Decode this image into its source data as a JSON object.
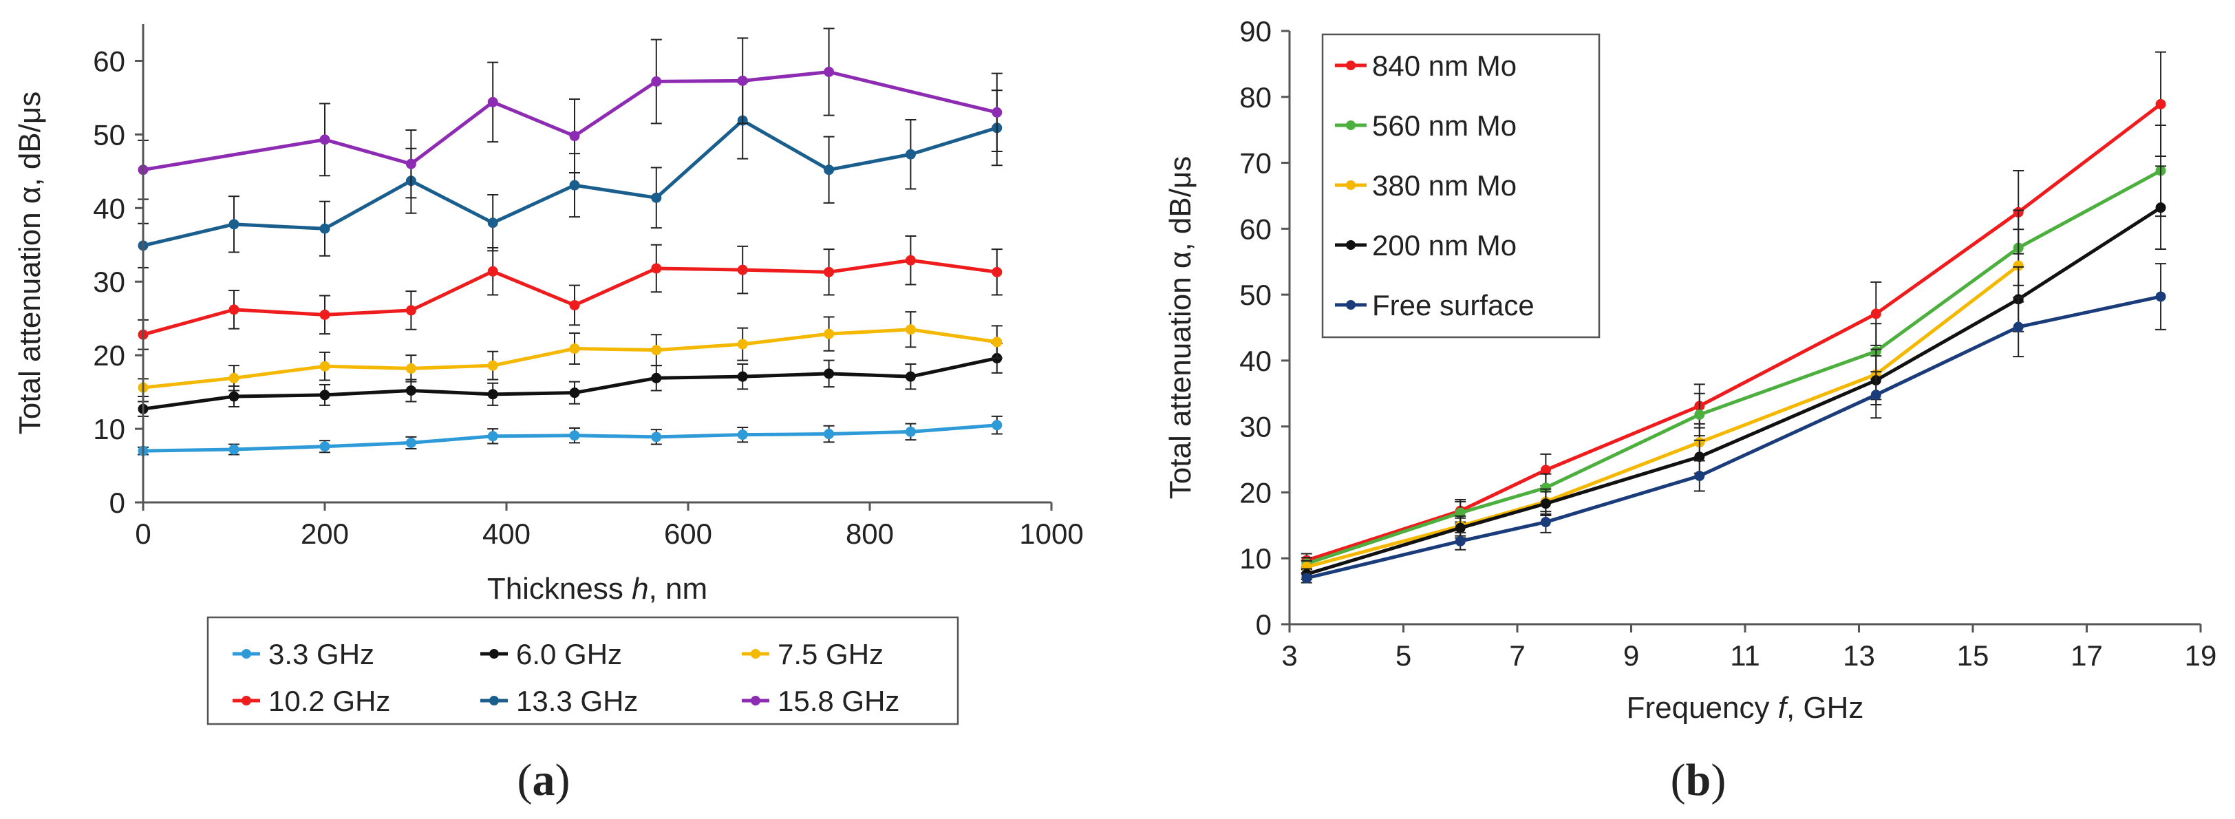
{
  "colors": {
    "axis": "#555555",
    "text": "#222222",
    "sky": "#2E9BD8",
    "black": "#111111",
    "yellow": "#F5B800",
    "red": "#EE1C1C",
    "teal": "#1A5E8E",
    "purple": "#8E2BB3",
    "green": "#4CAF3E",
    "navy": "#1A3C7A"
  },
  "chart_data": [
    {
      "type": "line",
      "panel_label": "a",
      "title": "",
      "xlabel_prefix": "Thickness ",
      "xlabel_italic": "h",
      "xlabel_suffix": ", nm",
      "ylabel": "Total attenuation α, dB/μs",
      "xlim": [
        0,
        1000
      ],
      "ylim": [
        0,
        65
      ],
      "xticks": [
        "0",
        "200",
        "400",
        "600",
        "800",
        "1000"
      ],
      "yticks": [
        "0",
        "10",
        "20",
        "30",
        "40",
        "50",
        "60"
      ],
      "grid": false,
      "legend_position": "below",
      "x": [
        0,
        100,
        200,
        295,
        385,
        475,
        565,
        660,
        755,
        845,
        940
      ],
      "series": [
        {
          "name": "3.3 GHz",
          "color": "sky",
          "values": [
            7.0,
            7.2,
            7.6,
            8.1,
            9.0,
            9.1,
            8.9,
            9.2,
            9.3,
            9.6,
            10.5
          ],
          "errors": [
            0.5,
            0.7,
            0.8,
            0.8,
            1.0,
            1.0,
            1.0,
            1.0,
            1.1,
            1.1,
            1.2
          ]
        },
        {
          "name": "6.0 GHz",
          "color": "black",
          "values": [
            12.7,
            14.4,
            14.6,
            15.2,
            14.7,
            14.9,
            16.9,
            17.1,
            17.5,
            17.1,
            19.6
          ],
          "errors": [
            1.0,
            1.4,
            1.4,
            1.5,
            1.5,
            1.5,
            1.7,
            1.7,
            1.8,
            1.7,
            2.0
          ]
        },
        {
          "name": "7.5 GHz",
          "color": "yellow",
          "values": [
            15.6,
            16.9,
            18.5,
            18.2,
            18.6,
            20.9,
            20.7,
            21.5,
            22.9,
            23.5,
            21.8
          ],
          "errors": [
            1.2,
            1.7,
            1.9,
            1.8,
            1.9,
            2.1,
            2.1,
            2.2,
            2.3,
            2.4,
            2.2
          ]
        },
        {
          "name": "10.2 GHz",
          "color": "red",
          "values": [
            22.8,
            26.2,
            25.5,
            26.1,
            31.4,
            26.8,
            31.8,
            31.6,
            31.3,
            32.9,
            31.3
          ],
          "errors": [
            2.0,
            2.6,
            2.6,
            2.6,
            3.2,
            2.7,
            3.2,
            3.2,
            3.1,
            3.3,
            3.1
          ]
        },
        {
          "name": "13.3 GHz",
          "color": "teal",
          "values": [
            34.9,
            37.8,
            37.2,
            43.7,
            38.0,
            43.1,
            41.4,
            51.9,
            45.2,
            47.3,
            50.9
          ],
          "errors": [
            3.0,
            3.8,
            3.7,
            4.4,
            3.8,
            4.3,
            4.1,
            5.2,
            4.5,
            4.7,
            5.1
          ]
        },
        {
          "name": "15.8 GHz",
          "color": "purple",
          "values": [
            45.2,
            null,
            49.3,
            46.0,
            54.4,
            49.8,
            57.2,
            57.3,
            58.5,
            null,
            53.0
          ],
          "errors": [
            4.0,
            null,
            4.9,
            4.6,
            5.4,
            5.0,
            5.7,
            5.8,
            5.9,
            null,
            5.3
          ]
        }
      ]
    },
    {
      "type": "line",
      "panel_label": "b",
      "title": "",
      "xlabel_prefix": "Frequency ",
      "xlabel_italic": "f",
      "xlabel_suffix": ", GHz",
      "ylabel": "Total attenuation α, dB/μs",
      "xlim": [
        3,
        19
      ],
      "ylim": [
        0,
        90
      ],
      "xticks": [
        "3",
        "5",
        "7",
        "9",
        "11",
        "13",
        "15",
        "17",
        "19"
      ],
      "yticks": [
        "0",
        "10",
        "20",
        "30",
        "40",
        "50",
        "60",
        "70",
        "80",
        "90"
      ],
      "grid": false,
      "legend_position": "top-left",
      "x": [
        3.3,
        6.0,
        7.5,
        10.2,
        13.3,
        15.8,
        18.3
      ],
      "series": [
        {
          "name": "840 nm Mo",
          "color": "red",
          "values": [
            9.7,
            17.2,
            23.4,
            33.1,
            47.1,
            62.5,
            78.9
          ],
          "errors": [
            1.0,
            1.7,
            2.4,
            3.3,
            4.8,
            6.3,
            7.9
          ]
        },
        {
          "name": "560 nm Mo",
          "color": "green",
          "values": [
            9.2,
            16.9,
            20.7,
            31.8,
            41.4,
            57.1,
            68.8
          ],
          "errors": [
            0.9,
            1.7,
            2.1,
            3.2,
            4.2,
            5.7,
            6.9
          ]
        },
        {
          "name": "380 nm Mo",
          "color": "yellow",
          "values": [
            8.7,
            14.9,
            18.6,
            27.6,
            37.9,
            54.4,
            null
          ],
          "errors": [
            0.9,
            1.5,
            1.9,
            2.8,
            3.8,
            5.5,
            null
          ]
        },
        {
          "name": "200 nm Mo",
          "color": "black",
          "values": [
            7.6,
            14.6,
            18.3,
            25.4,
            37.0,
            49.3,
            63.2
          ],
          "errors": [
            0.8,
            1.5,
            1.8,
            2.5,
            3.7,
            4.9,
            6.3
          ]
        },
        {
          "name": "Free surface",
          "color": "navy",
          "values": [
            7.0,
            12.6,
            15.5,
            22.5,
            34.8,
            45.1,
            49.7
          ],
          "errors": [
            0.7,
            1.3,
            1.6,
            2.3,
            3.5,
            4.5,
            5.0
          ]
        }
      ]
    }
  ]
}
